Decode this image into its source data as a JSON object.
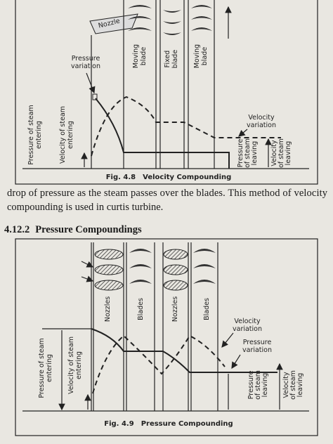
{
  "figure_1": {
    "labels": {
      "nozzle": [
        "Nozzle"
      ],
      "pressure_variation": [
        "Pressure",
        "variation"
      ],
      "moving_blade_1": [
        "Moving",
        "blade"
      ],
      "fixed_blade": [
        "Fixed",
        "blade"
      ],
      "moving_blade_2": [
        "Moving",
        "blade"
      ],
      "velocity_variation": [
        "Velocity",
        "variation"
      ],
      "pressure_entering": [
        "Pressure of steam",
        "entering"
      ],
      "velocity_entering": [
        "Velocity of steam",
        "entering"
      ],
      "pressure_leaving": [
        "Pressure",
        "of steam",
        "leaving"
      ],
      "velocity_leaving": [
        "Velocity",
        "of steam",
        "leaving"
      ]
    },
    "caption": {
      "number": "Fig. 4.8",
      "title": "Velocity Compounding"
    }
  },
  "body": {
    "lines": [
      "drop of pressure as the steam passes over the blades. This method of velocity",
      "compounding is used in curtis turbine."
    ]
  },
  "section": {
    "number": "4.12.2",
    "title": "Pressure Compoundings"
  },
  "figure_2": {
    "labels": {
      "nozzles_1": [
        "Nozzles"
      ],
      "blades_1": [
        "Blades"
      ],
      "nozzles_2": [
        "Nozzles"
      ],
      "blades_2": [
        "Blades"
      ],
      "velocity_variation": [
        "Velocity",
        "variation"
      ],
      "pressure_variation": [
        "Pressure",
        "variation"
      ],
      "pressure_entering": [
        "Pressure of steam",
        "entering"
      ],
      "velocity_entering": [
        "Velocity of steam",
        "entering"
      ],
      "pressure_leaving": [
        "Pressure",
        "of steam",
        "leaving"
      ],
      "velocity_leaving": [
        "Velocity",
        "of steam",
        "leaving"
      ]
    },
    "caption": {
      "number": "Fig. 4.9",
      "title": "Pressure Compounding"
    }
  }
}
